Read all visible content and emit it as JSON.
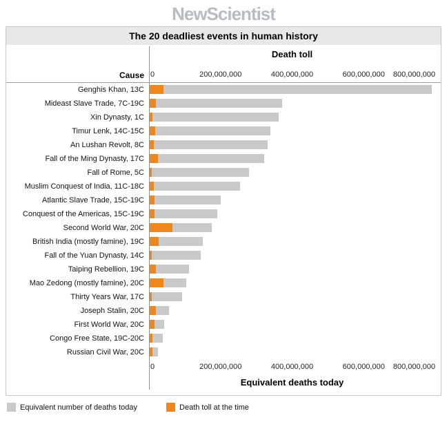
{
  "logo": "NewScientist",
  "title": "The 20 deadliest events in human history",
  "chart_data": {
    "type": "bar",
    "orientation": "horizontal",
    "title": "The 20 deadliest events in human history",
    "top_axis_label": "Death toll",
    "bottom_axis_label": "Equivalent deaths today",
    "cause_header": "Cause",
    "xlim": [
      0,
      800000000
    ],
    "tick_values": [
      0,
      200000000,
      400000000,
      600000000,
      800000000
    ],
    "tick_labels": [
      "0",
      "200,000,000",
      "400,000,000",
      "600,000,000",
      "800,000,000"
    ],
    "grid": false,
    "legend_position": "bottom-left",
    "categories": [
      "Genghis Khan, 13C",
      "Mideast Slave Trade, 7C-19C",
      "Xin Dynasty, 1C",
      "Timur Lenk, 14C-15C",
      "An Lushan Revolt, 8C",
      "Fall of the Ming Dynasty, 17C",
      "Fall of Rome, 5C",
      "Muslim Conquest of India, 11C-18C",
      "Atlantic Slave Trade, 15C-19C",
      "Conquest of the Americas, 15C-19C",
      "Second World War, 20C",
      "British India (mostly famine), 19C",
      "Fall of the Yuan Dynasty, 14C",
      "Taiping Rebellion, 19C",
      "Mao Zedong (mostly famine), 20C",
      "Thirty Years War, 17C",
      "Joseph Stalin, 20C",
      "First World War, 20C",
      "Congo Free State, 19C-20C",
      "Russian Civil War, 20C"
    ],
    "series": [
      {
        "name": "Equivalent number of deaths today",
        "color": "#c9c9c9",
        "values": [
          790000000,
          372000000,
          363000000,
          340000000,
          332000000,
          322000000,
          280000000,
          255000000,
          200000000,
          190000000,
          175000000,
          150000000,
          145000000,
          112000000,
          105000000,
          92000000,
          56000000,
          42000000,
          38000000,
          26000000
        ]
      },
      {
        "name": "Death toll at the time",
        "color": "#f0871d",
        "values": [
          40000000,
          18500000,
          10000000,
          17000000,
          13000000,
          25000000,
          8000000,
          13000000,
          16000000,
          15000000,
          66000000,
          27000000,
          7500000,
          20000000,
          40000000,
          7500000,
          20000000,
          15000000,
          10000000,
          9000000
        ]
      }
    ]
  }
}
